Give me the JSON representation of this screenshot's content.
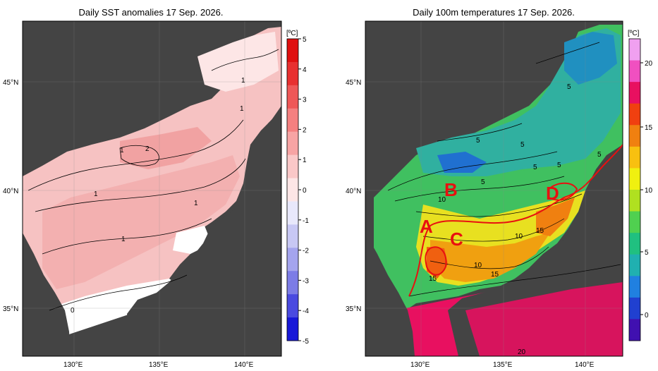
{
  "left": {
    "title": "Daily SST anomalies 17 Sep. 2026.",
    "unit": "[ºC]",
    "colorbar_ticks": [
      "5",
      "4",
      "3",
      "2",
      "1",
      "0",
      "-1",
      "-2",
      "-3",
      "-4",
      "-5"
    ],
    "colorbar_colors": [
      "#e01010",
      "#e83030",
      "#ef5858",
      "#f48080",
      "#f7a4a4",
      "#fac8c8",
      "#fde6e6",
      "#e8e8fb",
      "#c8c8f4",
      "#a4a4ee",
      "#7c7ce6",
      "#4a4ae0",
      "#1818d8"
    ],
    "contour_labels": [
      "1",
      "1",
      "1",
      "2",
      "1",
      "1",
      "1",
      "0"
    ]
  },
  "right": {
    "title": "Daily 100m temperatures 17 Sep. 2026.",
    "unit": "[ºC]",
    "colorbar_ticks": [
      "20",
      "15",
      "10",
      "5",
      "0"
    ],
    "colorbar_colors": [
      "#f0a0f0",
      "#f050c0",
      "#e81060",
      "#f04010",
      "#f08010",
      "#f8c010",
      "#f0f010",
      "#b0e020",
      "#50d050",
      "#20c080",
      "#20b0b0",
      "#2080e0",
      "#2040d0",
      "#4010b0"
    ],
    "letters": [
      "A",
      "B",
      "C",
      "D"
    ],
    "contour_labels": [
      "5",
      "5",
      "5",
      "5",
      "5",
      "5",
      "5",
      "10",
      "10",
      "10",
      "15",
      "15",
      "15",
      "20"
    ]
  },
  "axes": {
    "lon_labels": [
      "130°E",
      "135°E",
      "140°E"
    ],
    "lat_labels": [
      "45°N",
      "40°N",
      "35°N"
    ]
  }
}
